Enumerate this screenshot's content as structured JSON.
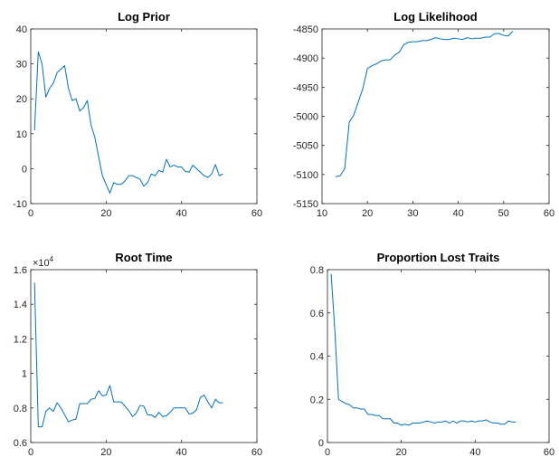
{
  "chart_data": [
    {
      "type": "line",
      "title": "Log Prior",
      "xlabel": "",
      "ylabel": "",
      "xlim": [
        0,
        60
      ],
      "ylim": [
        -10,
        40
      ],
      "xticks": [
        "0",
        "20",
        "40",
        "60"
      ],
      "yticks": [
        "-10",
        "0",
        "10",
        "20",
        "30",
        "40"
      ],
      "grid": false,
      "series": [
        {
          "color": "#0072bd",
          "x": [
            1,
            2,
            3,
            4,
            5,
            6,
            7,
            8,
            9,
            10,
            11,
            12,
            13,
            14,
            15,
            16,
            17,
            18,
            19,
            20,
            21,
            22,
            23,
            24,
            25,
            26,
            27,
            28,
            29,
            30,
            31,
            32,
            33,
            34,
            35,
            36,
            37,
            38,
            39,
            40,
            41,
            42,
            43,
            44,
            45,
            46,
            47,
            48,
            49,
            50,
            51
          ],
          "y": [
            11,
            33.5,
            30,
            20.5,
            23,
            24.5,
            27.5,
            28.5,
            29.5,
            23,
            19.5,
            20,
            16.5,
            17.5,
            19.5,
            12.5,
            9,
            3.5,
            -2,
            -4.5,
            -7,
            -4,
            -4.5,
            -4.5,
            -3.5,
            -2,
            -2,
            -2.5,
            -3,
            -5,
            -4,
            -1.5,
            -2,
            -0.5,
            -1,
            2.7,
            0.5,
            1,
            0.5,
            0.5,
            -0.8,
            -1,
            1,
            0,
            -1,
            -2,
            -2.5,
            -1.5,
            1.2,
            -2,
            -1.5
          ]
        }
      ]
    },
    {
      "type": "line",
      "title": "Log Likelihood",
      "xlabel": "",
      "ylabel": "",
      "xlim": [
        10,
        60
      ],
      "ylim": [
        -5150,
        -4850
      ],
      "xticks": [
        "10",
        "20",
        "30",
        "40",
        "50",
        "60"
      ],
      "yticks": [
        "-5150",
        "-5100",
        "-5050",
        "-5000",
        "-4950",
        "-4900",
        "-4850"
      ],
      "grid": false,
      "series": [
        {
          "color": "#0072bd",
          "x": [
            13,
            14,
            15,
            16,
            17,
            18,
            19,
            20,
            21,
            22,
            23,
            24,
            25,
            26,
            27,
            28,
            29,
            30,
            31,
            32,
            33,
            34,
            35,
            36,
            37,
            38,
            39,
            40,
            41,
            42,
            43,
            44,
            45,
            46,
            47,
            48,
            49,
            50,
            51,
            52
          ],
          "y": [
            -5104,
            -5102,
            -5090,
            -5010,
            -4998,
            -4975,
            -4952,
            -4918,
            -4913,
            -4910,
            -4905,
            -4903,
            -4903,
            -4895,
            -4890,
            -4877,
            -4873,
            -4872,
            -4872,
            -4870,
            -4870,
            -4868,
            -4865,
            -4867,
            -4868,
            -4868,
            -4866,
            -4867,
            -4868,
            -4865,
            -4867,
            -4866,
            -4866,
            -4864,
            -4864,
            -4858,
            -4858,
            -4861,
            -4862,
            -4854
          ]
        }
      ]
    },
    {
      "type": "line",
      "title": "Root Time",
      "xlabel": "",
      "ylabel": "",
      "xlim": [
        0,
        60
      ],
      "ylim": [
        0.6,
        1.6
      ],
      "exponent_base": "×10",
      "exponent_power": "4",
      "xticks": [
        "0",
        "20",
        "40",
        "60"
      ],
      "yticks": [
        "0.6",
        "0.8",
        "1",
        "1.2",
        "1.4",
        "1.6"
      ],
      "grid": false,
      "series": [
        {
          "color": "#0072bd",
          "x": [
            1,
            2,
            3,
            4,
            5,
            6,
            7,
            8,
            9,
            10,
            11,
            12,
            13,
            14,
            15,
            16,
            17,
            18,
            19,
            20,
            21,
            22,
            23,
            24,
            25,
            26,
            27,
            28,
            29,
            30,
            31,
            32,
            33,
            34,
            35,
            36,
            37,
            38,
            39,
            40,
            41,
            42,
            43,
            44,
            45,
            46,
            47,
            48,
            49,
            50,
            51
          ],
          "y": [
            1.525,
            0.69,
            0.69,
            0.78,
            0.8,
            0.78,
            0.83,
            0.8,
            0.76,
            0.72,
            0.73,
            0.735,
            0.825,
            0.825,
            0.825,
            0.85,
            0.855,
            0.9,
            0.87,
            0.875,
            0.93,
            0.835,
            0.835,
            0.835,
            0.81,
            0.785,
            0.75,
            0.77,
            0.815,
            0.81,
            0.76,
            0.76,
            0.745,
            0.775,
            0.75,
            0.755,
            0.775,
            0.8,
            0.8,
            0.8,
            0.8,
            0.765,
            0.77,
            0.79,
            0.86,
            0.875,
            0.835,
            0.8,
            0.85,
            0.83,
            0.83
          ]
        }
      ]
    },
    {
      "type": "line",
      "title": "Proportion Lost Traits",
      "xlabel": "",
      "ylabel": "",
      "xlim": [
        0,
        60
      ],
      "ylim": [
        0,
        0.8
      ],
      "xticks": [
        "0",
        "20",
        "40",
        "60"
      ],
      "yticks": [
        "0",
        "0.2",
        "0.4",
        "0.6",
        "0.8"
      ],
      "grid": false,
      "series": [
        {
          "color": "#0072bd",
          "x": [
            1,
            2,
            3,
            4,
            5,
            6,
            7,
            8,
            9,
            10,
            11,
            12,
            13,
            14,
            15,
            16,
            17,
            18,
            19,
            20,
            21,
            22,
            23,
            24,
            25,
            26,
            27,
            28,
            29,
            30,
            31,
            32,
            33,
            34,
            35,
            36,
            37,
            38,
            39,
            40,
            41,
            42,
            43,
            44,
            45,
            46,
            47,
            48,
            49,
            50,
            51
          ],
          "y": [
            0.78,
            0.52,
            0.2,
            0.19,
            0.18,
            0.175,
            0.16,
            0.16,
            0.155,
            0.155,
            0.13,
            0.13,
            0.125,
            0.125,
            0.11,
            0.11,
            0.11,
            0.09,
            0.09,
            0.08,
            0.085,
            0.08,
            0.09,
            0.09,
            0.09,
            0.095,
            0.1,
            0.095,
            0.09,
            0.095,
            0.095,
            0.1,
            0.09,
            0.1,
            0.09,
            0.1,
            0.1,
            0.095,
            0.1,
            0.095,
            0.1,
            0.1,
            0.105,
            0.095,
            0.09,
            0.09,
            0.085,
            0.085,
            0.1,
            0.095,
            0.095
          ]
        }
      ]
    }
  ]
}
